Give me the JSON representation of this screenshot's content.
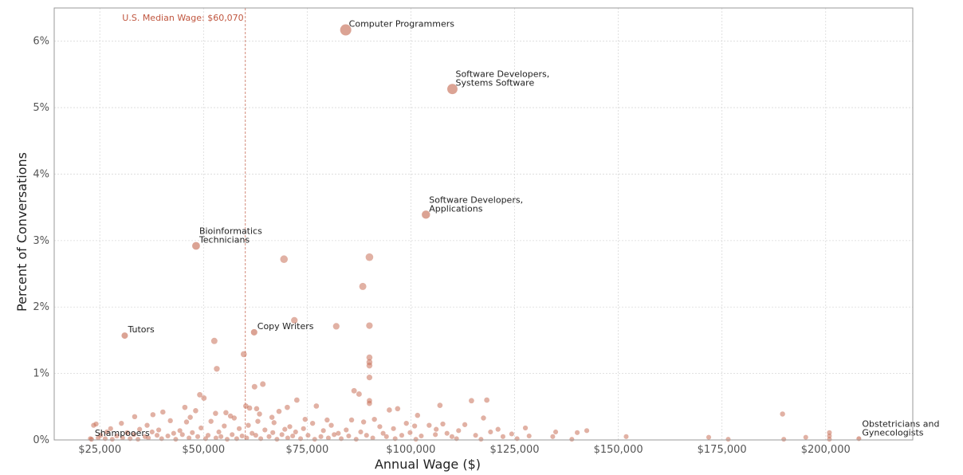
{
  "chart_data": {
    "type": "scatter",
    "title": "",
    "xlabel": "Annual Wage ($)",
    "ylabel": "Percent of Conversations",
    "xlim": [
      14000,
      221000
    ],
    "ylim": [
      0,
      6.5
    ],
    "x_ticks": [
      {
        "value": 25000,
        "label": "$25,000"
      },
      {
        "value": 50000,
        "label": "$50,000"
      },
      {
        "value": 75000,
        "label": "$75,000"
      },
      {
        "value": 100000,
        "label": "$100,000"
      },
      {
        "value": 125000,
        "label": "$125,000"
      },
      {
        "value": 150000,
        "label": "$150,000"
      },
      {
        "value": 175000,
        "label": "$175,000"
      },
      {
        "value": 200000,
        "label": "$200,000"
      }
    ],
    "y_ticks": [
      {
        "value": 0,
        "label": "0%"
      },
      {
        "value": 1,
        "label": "1%"
      },
      {
        "value": 2,
        "label": "2%"
      },
      {
        "value": 3,
        "label": "3%"
      },
      {
        "value": 4,
        "label": "4%"
      },
      {
        "value": 5,
        "label": "5%"
      },
      {
        "value": 6,
        "label": "6%"
      }
    ],
    "grid": true,
    "color": "#c8715a",
    "reference_line": {
      "x": 60070,
      "label": "U.S. Median Wage: $60,070",
      "color": "#c0563f"
    },
    "labeled_points": [
      {
        "name": "Computer Programmers",
        "lines": [
          "Computer Programmers"
        ],
        "x": 84280,
        "y": 6.17
      },
      {
        "name": "Software Developers, Systems Software",
        "lines": [
          "Software Developers,",
          "Systems Software"
        ],
        "x": 110000,
        "y": 5.28
      },
      {
        "name": "Software Developers, Applications",
        "lines": [
          "Software Developers,",
          "Applications"
        ],
        "x": 103620,
        "y": 3.39
      },
      {
        "name": "Bioinformatics Technicians",
        "lines": [
          "Bioinformatics",
          "Technicians"
        ],
        "x": 48200,
        "y": 2.92
      },
      {
        "name": "Tutors",
        "lines": [
          "Tutors"
        ],
        "x": 31000,
        "y": 1.57
      },
      {
        "name": "Copy Writers",
        "lines": [
          "Copy Writers"
        ],
        "x": 62200,
        "y": 1.62
      },
      {
        "name": "Shampooers",
        "lines": [
          "Shampooers"
        ],
        "x": 23000,
        "y": 0.01
      },
      {
        "name": "Obstetricians and Gynecologists",
        "lines": [
          "Obstetricians and",
          "Gynecologists"
        ],
        "x": 208000,
        "y": 0.02
      }
    ],
    "points": [
      [
        69400,
        2.72
      ],
      [
        90000,
        2.75
      ],
      [
        88400,
        2.31
      ],
      [
        71900,
        1.8
      ],
      [
        82000,
        1.71
      ],
      [
        90000,
        1.72
      ],
      [
        52600,
        1.49
      ],
      [
        59700,
        1.29
      ],
      [
        90000,
        1.24
      ],
      [
        90000,
        1.17
      ],
      [
        90000,
        1.12
      ],
      [
        53200,
        1.07
      ],
      [
        90000,
        0.94
      ],
      [
        64300,
        0.84
      ],
      [
        62300,
        0.8
      ],
      [
        86300,
        0.74
      ],
      [
        49100,
        0.68
      ],
      [
        87500,
        0.69
      ],
      [
        50100,
        0.63
      ],
      [
        72500,
        0.6
      ],
      [
        114600,
        0.59
      ],
      [
        118300,
        0.6
      ],
      [
        90000,
        0.59
      ],
      [
        90000,
        0.55
      ],
      [
        107000,
        0.52
      ],
      [
        77200,
        0.51
      ],
      [
        45500,
        0.49
      ],
      [
        60200,
        0.51
      ],
      [
        61100,
        0.48
      ],
      [
        96800,
        0.47
      ],
      [
        70200,
        0.49
      ],
      [
        62800,
        0.47
      ],
      [
        48100,
        0.44
      ],
      [
        55400,
        0.41
      ],
      [
        94800,
        0.45
      ],
      [
        40200,
        0.42
      ],
      [
        52900,
        0.4
      ],
      [
        63500,
        0.39
      ],
      [
        37800,
        0.38
      ],
      [
        56500,
        0.36
      ],
      [
        68200,
        0.43
      ],
      [
        101600,
        0.37
      ],
      [
        33400,
        0.35
      ],
      [
        46800,
        0.34
      ],
      [
        57400,
        0.33
      ],
      [
        66500,
        0.34
      ],
      [
        79800,
        0.3
      ],
      [
        117500,
        0.33
      ],
      [
        189600,
        0.39
      ],
      [
        91200,
        0.31
      ],
      [
        85700,
        0.3
      ],
      [
        74500,
        0.31
      ],
      [
        42000,
        0.29
      ],
      [
        51800,
        0.28
      ],
      [
        24100,
        0.24
      ],
      [
        30200,
        0.25
      ],
      [
        45900,
        0.27
      ],
      [
        63100,
        0.28
      ],
      [
        67000,
        0.26
      ],
      [
        76300,
        0.25
      ],
      [
        88600,
        0.27
      ],
      [
        98900,
        0.25
      ],
      [
        107700,
        0.24
      ],
      [
        113000,
        0.23
      ],
      [
        23500,
        0.22
      ],
      [
        36400,
        0.22
      ],
      [
        55000,
        0.21
      ],
      [
        60800,
        0.22
      ],
      [
        70800,
        0.2
      ],
      [
        80800,
        0.22
      ],
      [
        92500,
        0.2
      ],
      [
        100900,
        0.21
      ],
      [
        104400,
        0.22
      ],
      [
        121000,
        0.16
      ],
      [
        27600,
        0.17
      ],
      [
        34600,
        0.16
      ],
      [
        39200,
        0.15
      ],
      [
        44300,
        0.14
      ],
      [
        49400,
        0.18
      ],
      [
        58600,
        0.17
      ],
      [
        64800,
        0.15
      ],
      [
        69600,
        0.16
      ],
      [
        74100,
        0.17
      ],
      [
        78900,
        0.14
      ],
      [
        84400,
        0.15
      ],
      [
        95800,
        0.17
      ],
      [
        106100,
        0.16
      ],
      [
        111500,
        0.14
      ],
      [
        119200,
        0.12
      ],
      [
        127600,
        0.18
      ],
      [
        134900,
        0.12
      ],
      [
        142400,
        0.14
      ],
      [
        26700,
        0.12
      ],
      [
        31600,
        0.11
      ],
      [
        37600,
        0.12
      ],
      [
        42800,
        0.1
      ],
      [
        47300,
        0.11
      ],
      [
        53700,
        0.12
      ],
      [
        61700,
        0.1
      ],
      [
        66700,
        0.11
      ],
      [
        72200,
        0.12
      ],
      [
        82500,
        0.1
      ],
      [
        87900,
        0.12
      ],
      [
        93300,
        0.1
      ],
      [
        99800,
        0.11
      ],
      [
        108700,
        0.1
      ],
      [
        124300,
        0.09
      ],
      [
        140100,
        0.11
      ],
      [
        200900,
        0.11
      ],
      [
        25200,
        0.07
      ],
      [
        29100,
        0.06
      ],
      [
        33200,
        0.08
      ],
      [
        35900,
        0.05
      ],
      [
        38800,
        0.07
      ],
      [
        41400,
        0.06
      ],
      [
        44900,
        0.08
      ],
      [
        48600,
        0.05
      ],
      [
        51100,
        0.07
      ],
      [
        54200,
        0.05
      ],
      [
        56900,
        0.08
      ],
      [
        59300,
        0.06
      ],
      [
        62600,
        0.07
      ],
      [
        65800,
        0.05
      ],
      [
        68900,
        0.08
      ],
      [
        71500,
        0.06
      ],
      [
        75200,
        0.07
      ],
      [
        78300,
        0.05
      ],
      [
        81500,
        0.08
      ],
      [
        85000,
        0.06
      ],
      [
        89300,
        0.07
      ],
      [
        94100,
        0.05
      ],
      [
        97800,
        0.07
      ],
      [
        102500,
        0.06
      ],
      [
        105900,
        0.08
      ],
      [
        109900,
        0.05
      ],
      [
        115600,
        0.07
      ],
      [
        122200,
        0.05
      ],
      [
        128500,
        0.06
      ],
      [
        134200,
        0.05
      ],
      [
        151900,
        0.05
      ],
      [
        171800,
        0.04
      ],
      [
        195200,
        0.04
      ],
      [
        200900,
        0.06
      ],
      [
        22700,
        0.02
      ],
      [
        24600,
        0.03
      ],
      [
        26300,
        0.02
      ],
      [
        28000,
        0.01
      ],
      [
        30500,
        0.03
      ],
      [
        32300,
        0.02
      ],
      [
        34200,
        0.01
      ],
      [
        36700,
        0.03
      ],
      [
        39900,
        0.02
      ],
      [
        43300,
        0.01
      ],
      [
        46500,
        0.03
      ],
      [
        50500,
        0.02
      ],
      [
        53000,
        0.03
      ],
      [
        55700,
        0.01
      ],
      [
        58000,
        0.02
      ],
      [
        60400,
        0.03
      ],
      [
        63800,
        0.02
      ],
      [
        67700,
        0.01
      ],
      [
        70300,
        0.03
      ],
      [
        73400,
        0.02
      ],
      [
        76800,
        0.01
      ],
      [
        80100,
        0.03
      ],
      [
        83200,
        0.02
      ],
      [
        86800,
        0.01
      ],
      [
        90800,
        0.03
      ],
      [
        96200,
        0.02
      ],
      [
        101200,
        0.01
      ],
      [
        111000,
        0.02
      ],
      [
        116900,
        0.01
      ],
      [
        125600,
        0.02
      ],
      [
        138800,
        0.01
      ],
      [
        176500,
        0.01
      ],
      [
        189900,
        0.01
      ],
      [
        200900,
        0.01
      ]
    ]
  }
}
